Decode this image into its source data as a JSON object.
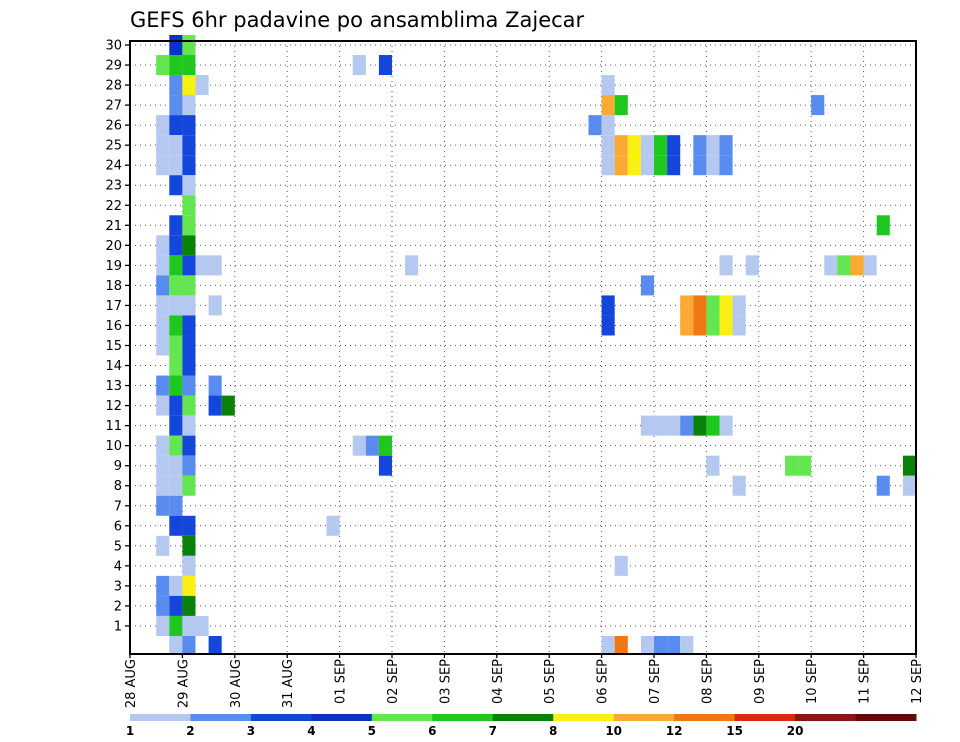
{
  "chart_data": {
    "type": "heatmap",
    "title": "GEFS 6hr padavine po ansamblima Zajecar",
    "xlabel": "",
    "ylabel": "",
    "x_ticks": [
      "28 AUG",
      "29 AUG",
      "30 AUG",
      "31 AUG",
      "01 SEP",
      "02 SEP",
      "03 SEP",
      "04 SEP",
      "05 SEP",
      "06 SEP",
      "07 SEP",
      "08 SEP",
      "09 SEP",
      "10 SEP",
      "11 SEP",
      "12 SEP"
    ],
    "y_ticks": [
      "1",
      "2",
      "3",
      "4",
      "5",
      "6",
      "7",
      "8",
      "9",
      "10",
      "11",
      "12",
      "13",
      "14",
      "15",
      "16",
      "17",
      "18",
      "19",
      "20",
      "21",
      "22",
      "23",
      "24",
      "25",
      "26",
      "27",
      "28",
      "29",
      "30"
    ],
    "x_unit": "6-hour step from 28 AUG 00Z",
    "x_range": [
      0,
      60
    ],
    "y_range": [
      0,
      30
    ],
    "grid": true,
    "legend": {
      "placement": "bottom",
      "levels": [
        "1",
        "2",
        "3",
        "4",
        "5",
        "6",
        "7",
        "8",
        "10",
        "12",
        "15",
        "20"
      ],
      "colors": [
        "#b4c8f0",
        "#5a8cf0",
        "#1446dc",
        "#0a32c8",
        "#64e650",
        "#1ec81e",
        "#0a820a",
        "#faf014",
        "#faaa32",
        "#f07814",
        "#dc2814",
        "#8c1414",
        "#640a0a"
      ]
    },
    "cells": [
      {
        "x": 3,
        "y": 30,
        "c": 3
      },
      {
        "x": 4,
        "y": 30,
        "c": 4
      },
      {
        "x": 2,
        "y": 29,
        "c": 4
      },
      {
        "x": 3,
        "y": 29,
        "c": 5
      },
      {
        "x": 4,
        "y": 29,
        "c": 5
      },
      {
        "x": 17,
        "y": 29,
        "c": 0
      },
      {
        "x": 19,
        "y": 29,
        "c": 2
      },
      {
        "x": 3,
        "y": 28,
        "c": 1
      },
      {
        "x": 4,
        "y": 28,
        "c": 7
      },
      {
        "x": 5,
        "y": 28,
        "c": 0
      },
      {
        "x": 36,
        "y": 28,
        "c": 0
      },
      {
        "x": 3,
        "y": 27,
        "c": 1
      },
      {
        "x": 4,
        "y": 27,
        "c": 0
      },
      {
        "x": 36,
        "y": 27,
        "c": 8
      },
      {
        "x": 37,
        "y": 27,
        "c": 5
      },
      {
        "x": 52,
        "y": 27,
        "c": 1
      },
      {
        "x": 2,
        "y": 26,
        "c": 0
      },
      {
        "x": 3,
        "y": 26,
        "c": 2
      },
      {
        "x": 4,
        "y": 26,
        "c": 2
      },
      {
        "x": 35,
        "y": 26,
        "c": 1
      },
      {
        "x": 36,
        "y": 26,
        "c": 0
      },
      {
        "x": 2,
        "y": 25,
        "c": 0
      },
      {
        "x": 3,
        "y": 25,
        "c": 0
      },
      {
        "x": 4,
        "y": 25,
        "c": 2
      },
      {
        "x": 36,
        "y": 25,
        "c": 0
      },
      {
        "x": 37,
        "y": 25,
        "c": 8
      },
      {
        "x": 38,
        "y": 25,
        "c": 7
      },
      {
        "x": 39,
        "y": 25,
        "c": 0
      },
      {
        "x": 40,
        "y": 25,
        "c": 5
      },
      {
        "x": 41,
        "y": 25,
        "c": 2
      },
      {
        "x": 43,
        "y": 25,
        "c": 1
      },
      {
        "x": 44,
        "y": 25,
        "c": 0
      },
      {
        "x": 45,
        "y": 25,
        "c": 1
      },
      {
        "x": 2,
        "y": 24,
        "c": 0
      },
      {
        "x": 3,
        "y": 24,
        "c": 0
      },
      {
        "x": 4,
        "y": 24,
        "c": 2
      },
      {
        "x": 36,
        "y": 24,
        "c": 0
      },
      {
        "x": 37,
        "y": 24,
        "c": 8
      },
      {
        "x": 38,
        "y": 24,
        "c": 7
      },
      {
        "x": 39,
        "y": 24,
        "c": 0
      },
      {
        "x": 40,
        "y": 24,
        "c": 5
      },
      {
        "x": 41,
        "y": 24,
        "c": 2
      },
      {
        "x": 43,
        "y": 24,
        "c": 1
      },
      {
        "x": 44,
        "y": 24,
        "c": 0
      },
      {
        "x": 45,
        "y": 24,
        "c": 1
      },
      {
        "x": 3,
        "y": 23,
        "c": 2
      },
      {
        "x": 4,
        "y": 23,
        "c": 0
      },
      {
        "x": 4,
        "y": 22,
        "c": 4
      },
      {
        "x": 3,
        "y": 21,
        "c": 2
      },
      {
        "x": 4,
        "y": 21,
        "c": 4
      },
      {
        "x": 57,
        "y": 21,
        "c": 5
      },
      {
        "x": 2,
        "y": 20,
        "c": 0
      },
      {
        "x": 3,
        "y": 20,
        "c": 2
      },
      {
        "x": 4,
        "y": 20,
        "c": 6
      },
      {
        "x": 2,
        "y": 19,
        "c": 0
      },
      {
        "x": 3,
        "y": 19,
        "c": 5
      },
      {
        "x": 4,
        "y": 19,
        "c": 2
      },
      {
        "x": 5,
        "y": 19,
        "c": 0
      },
      {
        "x": 6,
        "y": 19,
        "c": 0
      },
      {
        "x": 21,
        "y": 19,
        "c": 0
      },
      {
        "x": 45,
        "y": 19,
        "c": 0
      },
      {
        "x": 47,
        "y": 19,
        "c": 0
      },
      {
        "x": 53,
        "y": 19,
        "c": 0
      },
      {
        "x": 54,
        "y": 19,
        "c": 4
      },
      {
        "x": 55,
        "y": 19,
        "c": 8
      },
      {
        "x": 56,
        "y": 19,
        "c": 0
      },
      {
        "x": 2,
        "y": 18,
        "c": 1
      },
      {
        "x": 3,
        "y": 18,
        "c": 4
      },
      {
        "x": 4,
        "y": 18,
        "c": 4
      },
      {
        "x": 39,
        "y": 18,
        "c": 1
      },
      {
        "x": 2,
        "y": 17,
        "c": 0
      },
      {
        "x": 3,
        "y": 17,
        "c": 0
      },
      {
        "x": 4,
        "y": 17,
        "c": 0
      },
      {
        "x": 6,
        "y": 17,
        "c": 0
      },
      {
        "x": 36,
        "y": 17,
        "c": 2
      },
      {
        "x": 42,
        "y": 17,
        "c": 8
      },
      {
        "x": 43,
        "y": 17,
        "c": 9
      },
      {
        "x": 44,
        "y": 17,
        "c": 4
      },
      {
        "x": 45,
        "y": 17,
        "c": 7
      },
      {
        "x": 46,
        "y": 17,
        "c": 0
      },
      {
        "x": 2,
        "y": 16,
        "c": 0
      },
      {
        "x": 3,
        "y": 16,
        "c": 5
      },
      {
        "x": 4,
        "y": 16,
        "c": 2
      },
      {
        "x": 36,
        "y": 16,
        "c": 2
      },
      {
        "x": 42,
        "y": 16,
        "c": 8
      },
      {
        "x": 43,
        "y": 16,
        "c": 9
      },
      {
        "x": 44,
        "y": 16,
        "c": 4
      },
      {
        "x": 45,
        "y": 16,
        "c": 7
      },
      {
        "x": 46,
        "y": 16,
        "c": 0
      },
      {
        "x": 2,
        "y": 15,
        "c": 0
      },
      {
        "x": 3,
        "y": 15,
        "c": 4
      },
      {
        "x": 4,
        "y": 15,
        "c": 2
      },
      {
        "x": 3,
        "y": 14,
        "c": 4
      },
      {
        "x": 4,
        "y": 14,
        "c": 2
      },
      {
        "x": 2,
        "y": 13,
        "c": 1
      },
      {
        "x": 3,
        "y": 13,
        "c": 5
      },
      {
        "x": 4,
        "y": 13,
        "c": 1
      },
      {
        "x": 6,
        "y": 13,
        "c": 1
      },
      {
        "x": 2,
        "y": 12,
        "c": 0
      },
      {
        "x": 3,
        "y": 12,
        "c": 2
      },
      {
        "x": 4,
        "y": 12,
        "c": 4
      },
      {
        "x": 6,
        "y": 12,
        "c": 2
      },
      {
        "x": 7,
        "y": 12,
        "c": 6
      },
      {
        "x": 3,
        "y": 11,
        "c": 2
      },
      {
        "x": 4,
        "y": 11,
        "c": 0
      },
      {
        "x": 39,
        "y": 11,
        "c": 0
      },
      {
        "x": 40,
        "y": 11,
        "c": 0
      },
      {
        "x": 41,
        "y": 11,
        "c": 0
      },
      {
        "x": 42,
        "y": 11,
        "c": 1
      },
      {
        "x": 43,
        "y": 11,
        "c": 6
      },
      {
        "x": 44,
        "y": 11,
        "c": 5
      },
      {
        "x": 45,
        "y": 11,
        "c": 0
      },
      {
        "x": 2,
        "y": 10,
        "c": 0
      },
      {
        "x": 3,
        "y": 10,
        "c": 4
      },
      {
        "x": 4,
        "y": 10,
        "c": 2
      },
      {
        "x": 17,
        "y": 10,
        "c": 0
      },
      {
        "x": 18,
        "y": 10,
        "c": 1
      },
      {
        "x": 19,
        "y": 10,
        "c": 5
      },
      {
        "x": 2,
        "y": 9,
        "c": 0
      },
      {
        "x": 3,
        "y": 9,
        "c": 0
      },
      {
        "x": 4,
        "y": 9,
        "c": 1
      },
      {
        "x": 19,
        "y": 9,
        "c": 2
      },
      {
        "x": 44,
        "y": 9,
        "c": 0
      },
      {
        "x": 50,
        "y": 9,
        "c": 4
      },
      {
        "x": 51,
        "y": 9,
        "c": 4
      },
      {
        "x": 59,
        "y": 9,
        "c": 6
      },
      {
        "x": 2,
        "y": 8,
        "c": 0
      },
      {
        "x": 3,
        "y": 8,
        "c": 0
      },
      {
        "x": 4,
        "y": 8,
        "c": 4
      },
      {
        "x": 46,
        "y": 8,
        "c": 0
      },
      {
        "x": 57,
        "y": 8,
        "c": 1
      },
      {
        "x": 59,
        "y": 8,
        "c": 0
      },
      {
        "x": 2,
        "y": 7,
        "c": 1
      },
      {
        "x": 3,
        "y": 7,
        "c": 1
      },
      {
        "x": 3,
        "y": 6,
        "c": 2
      },
      {
        "x": 4,
        "y": 6,
        "c": 2
      },
      {
        "x": 15,
        "y": 6,
        "c": 0
      },
      {
        "x": 2,
        "y": 5,
        "c": 0
      },
      {
        "x": 4,
        "y": 5,
        "c": 6
      },
      {
        "x": 4,
        "y": 4,
        "c": 0
      },
      {
        "x": 37,
        "y": 4,
        "c": 0
      },
      {
        "x": 2,
        "y": 3,
        "c": 1
      },
      {
        "x": 3,
        "y": 3,
        "c": 0
      },
      {
        "x": 4,
        "y": 3,
        "c": 7
      },
      {
        "x": 2,
        "y": 2,
        "c": 1
      },
      {
        "x": 3,
        "y": 2,
        "c": 2
      },
      {
        "x": 4,
        "y": 2,
        "c": 6
      },
      {
        "x": 2,
        "y": 1,
        "c": 0
      },
      {
        "x": 3,
        "y": 1,
        "c": 5
      },
      {
        "x": 4,
        "y": 1,
        "c": 0
      },
      {
        "x": 5,
        "y": 1,
        "c": 0
      },
      {
        "x": 3,
        "y": 0,
        "c": 0
      },
      {
        "x": 4,
        "y": 0,
        "c": 1
      },
      {
        "x": 6,
        "y": 0,
        "c": 2
      },
      {
        "x": 36,
        "y": 0,
        "c": 0
      },
      {
        "x": 37,
        "y": 0,
        "c": 9
      },
      {
        "x": 39,
        "y": 0,
        "c": 0
      },
      {
        "x": 40,
        "y": 0,
        "c": 1
      },
      {
        "x": 41,
        "y": 0,
        "c": 1
      },
      {
        "x": 42,
        "y": 0,
        "c": 0
      }
    ]
  }
}
